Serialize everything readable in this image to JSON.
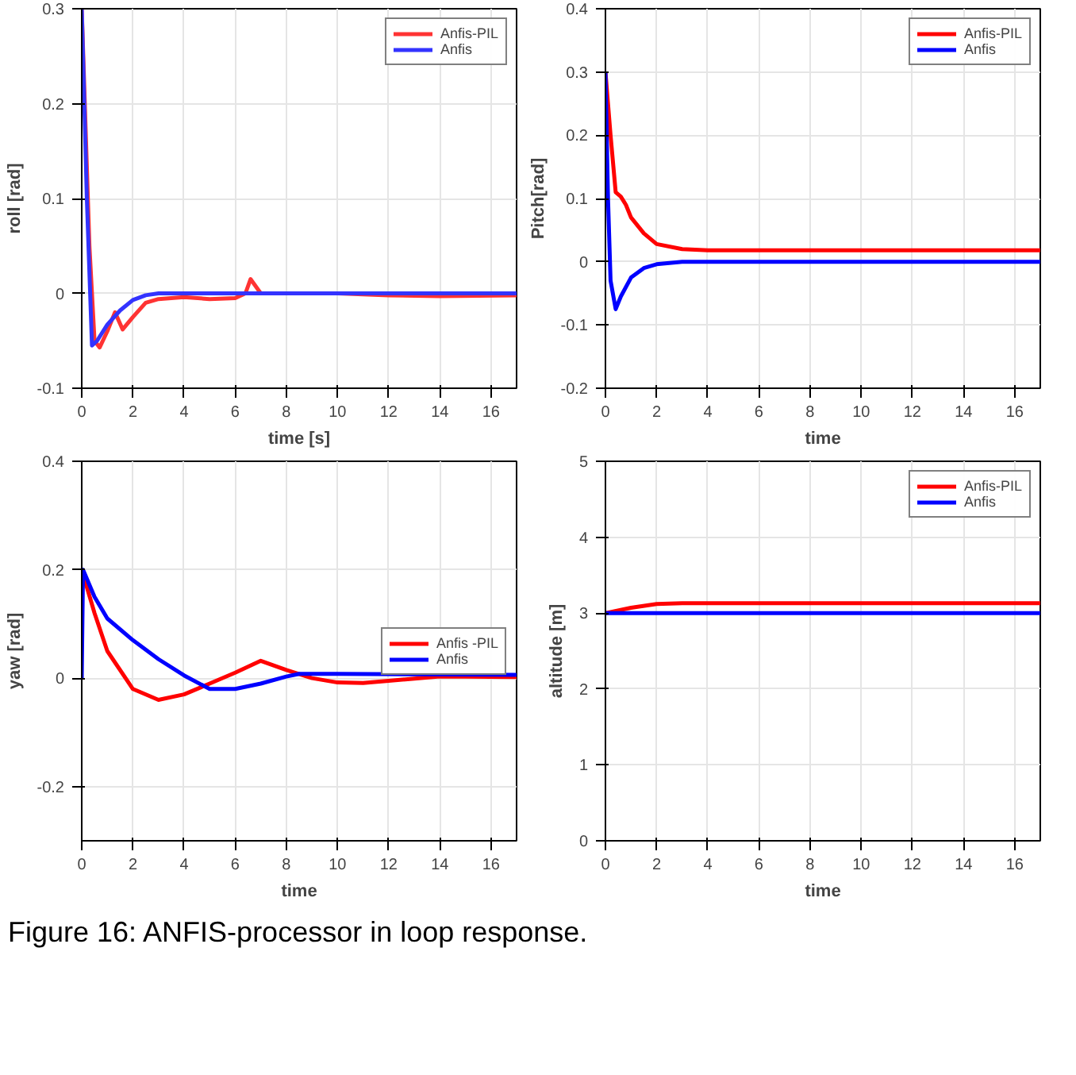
{
  "chart_data": [
    {
      "type": "line",
      "xlabel": "time [s]",
      "ylabel": "roll [rad]",
      "xlim": [
        0,
        17
      ],
      "ylim": [
        -0.1,
        0.3
      ],
      "xticks": [
        0,
        2,
        4,
        6,
        8,
        10,
        12,
        14,
        16
      ],
      "yticks": [
        -0.1,
        0,
        0.1,
        0.2,
        0.3
      ],
      "grid": true,
      "legend": "top right",
      "series": [
        {
          "name": "Anfis-PIL",
          "color": "#ff3333",
          "x": [
            0,
            0.3,
            0.5,
            0.7,
            1.0,
            1.3,
            1.6,
            2,
            2.5,
            3,
            4,
            5,
            6,
            6.4,
            6.6,
            7,
            8,
            10,
            12,
            14,
            17
          ],
          "values": [
            0.3,
            0.05,
            -0.05,
            -0.057,
            -0.04,
            -0.02,
            -0.038,
            -0.025,
            -0.01,
            -0.006,
            -0.004,
            -0.006,
            -0.005,
            0,
            0.015,
            0,
            0,
            0,
            -0.002,
            -0.003,
            -0.002
          ]
        },
        {
          "name": "Anfis",
          "color": "#3333ff",
          "x": [
            0,
            0.2,
            0.4,
            0.6,
            1,
            1.5,
            2,
            2.5,
            3,
            17
          ],
          "values": [
            0.3,
            0.1,
            -0.055,
            -0.05,
            -0.033,
            -0.018,
            -0.007,
            -0.002,
            0,
            0
          ]
        }
      ]
    },
    {
      "type": "line",
      "xlabel": "time",
      "ylabel": "Pitch[rad]",
      "xlim": [
        0,
        17
      ],
      "ylim": [
        -0.2,
        0.4
      ],
      "xticks": [
        0,
        2,
        4,
        6,
        8,
        10,
        12,
        14,
        16
      ],
      "yticks": [
        -0.2,
        -0.1,
        0,
        0.1,
        0.2,
        0.3,
        0.4
      ],
      "grid": true,
      "legend": "top right",
      "series": [
        {
          "name": "Anfis-PIL",
          "color": "#ff0000",
          "x": [
            0,
            0.2,
            0.4,
            0.6,
            0.8,
            1,
            1.5,
            2,
            3,
            4,
            17
          ],
          "values": [
            0.3,
            0.2,
            0.11,
            0.103,
            0.09,
            0.07,
            0.045,
            0.028,
            0.02,
            0.018,
            0.018
          ]
        },
        {
          "name": "Anfis",
          "color": "#0000ff",
          "x": [
            0,
            0.1,
            0.2,
            0.4,
            0.6,
            1,
            1.5,
            2,
            3,
            17
          ],
          "values": [
            0.3,
            0.1,
            -0.03,
            -0.075,
            -0.055,
            -0.025,
            -0.01,
            -0.004,
            0,
            0
          ]
        }
      ]
    },
    {
      "type": "line",
      "xlabel": "time",
      "ylabel": "yaw [rad]",
      "xlim": [
        0,
        17
      ],
      "ylim": [
        -0.3,
        0.4
      ],
      "xticks": [
        0,
        2,
        4,
        6,
        8,
        10,
        12,
        14,
        16
      ],
      "yticks": [
        -0.2,
        0,
        0.2,
        0.4
      ],
      "grid": true,
      "legend": "right",
      "series": [
        {
          "name": "Anfis -PIL",
          "color": "#ff0000",
          "x": [
            0,
            0.5,
            1,
            2,
            3,
            4,
            5,
            6,
            7,
            8,
            9,
            10,
            11,
            12,
            14,
            17
          ],
          "values": [
            0.2,
            0.12,
            0.05,
            -0.02,
            -0.04,
            -0.03,
            -0.01,
            0.01,
            0.032,
            0.015,
            0,
            -0.008,
            -0.009,
            -0.005,
            0.003,
            0.002
          ]
        },
        {
          "name": "Anfis",
          "color": "#0000ff",
          "x": [
            0,
            0.05,
            0.5,
            1,
            2,
            3,
            4,
            5,
            6,
            7,
            8,
            8.5,
            10,
            17
          ],
          "values": [
            0,
            0.2,
            0.15,
            0.11,
            0.07,
            0.035,
            0.005,
            -0.02,
            -0.02,
            -0.01,
            0.003,
            0.008,
            0.008,
            0.006
          ]
        }
      ]
    },
    {
      "type": "line",
      "xlabel": "time",
      "ylabel": "altitude [m]",
      "xlim": [
        0,
        17
      ],
      "ylim": [
        0,
        5
      ],
      "xticks": [
        0,
        2,
        4,
        6,
        8,
        10,
        12,
        14,
        16
      ],
      "yticks": [
        0,
        1,
        2,
        3,
        4,
        5
      ],
      "grid": true,
      "legend": "top right",
      "annotations": [
        "Figure 16: ANFIS-processor in loop response."
      ],
      "series": [
        {
          "name": "Anfis-PIL",
          "color": "#ff0000",
          "x": [
            0,
            1,
            2,
            3,
            17
          ],
          "values": [
            3,
            3.07,
            3.12,
            3.13,
            3.13
          ]
        },
        {
          "name": "Anfis",
          "color": "#0000ff",
          "x": [
            0,
            17
          ],
          "values": [
            3,
            3
          ]
        }
      ]
    }
  ]
}
